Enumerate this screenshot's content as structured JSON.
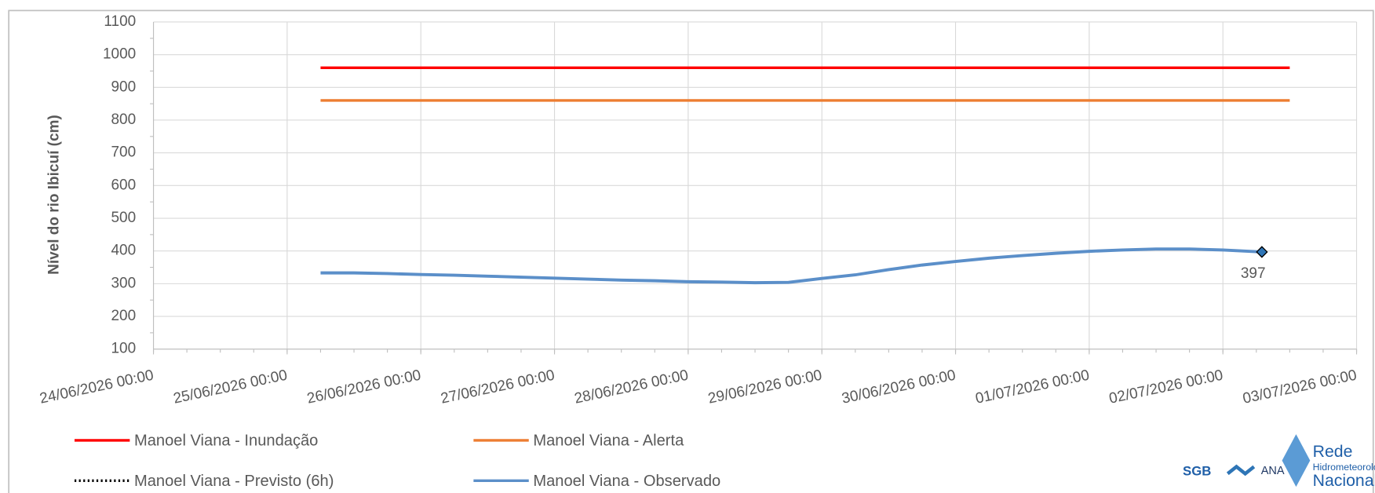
{
  "chart_data": {
    "type": "line",
    "y_label": "Nível do rio Ibicuí (cm)",
    "xlim": [
      "24/06/2026 00:00",
      "03/07/2026 00:00"
    ],
    "xticks": [
      "24/06/2026 00:00",
      "25/06/2026 00:00",
      "26/06/2026 00:00",
      "27/06/2026 00:00",
      "28/06/2026 00:00",
      "29/06/2026 00:00",
      "30/06/2026 00:00",
      "01/07/2026 00:00",
      "02/07/2026 00:00",
      "03/07/2026 00:00"
    ],
    "ylim": [
      100,
      1100
    ],
    "yticks": [
      100,
      200,
      300,
      400,
      500,
      600,
      700,
      800,
      900,
      1000,
      1100
    ],
    "grid": true,
    "series": [
      {
        "name": "Manoel Viana - Inundação",
        "color": "#ff0000",
        "style": "solid",
        "x": [
          "25/06/2026 06:00",
          "02/07/2026 12:00"
        ],
        "values": [
          960,
          960
        ]
      },
      {
        "name": "Manoel Viana - Alerta",
        "color": "#ed7d31",
        "style": "solid",
        "x": [
          "25/06/2026 06:00",
          "02/07/2026 12:00"
        ],
        "values": [
          860,
          860
        ]
      },
      {
        "name": "Manoel Viana - Previsto (6h)",
        "color": "#000000",
        "style": "dotted",
        "x": [],
        "values": []
      },
      {
        "name": "Manoel Viana - Observado",
        "color": "#5b8fc9",
        "style": "solid",
        "x": [
          "25/06/2026 06:00",
          "25/06/2026 12:00",
          "25/06/2026 18:00",
          "26/06/2026 00:00",
          "26/06/2026 06:00",
          "26/06/2026 12:00",
          "26/06/2026 18:00",
          "27/06/2026 00:00",
          "27/06/2026 06:00",
          "27/06/2026 12:00",
          "27/06/2026 18:00",
          "28/06/2026 00:00",
          "28/06/2026 06:00",
          "28/06/2026 12:00",
          "28/06/2026 18:00",
          "29/06/2026 00:00",
          "29/06/2026 06:00",
          "29/06/2026 12:00",
          "29/06/2026 18:00",
          "30/06/2026 00:00",
          "30/06/2026 06:00",
          "30/06/2026 12:00",
          "30/06/2026 18:00",
          "01/07/2026 00:00",
          "01/07/2026 06:00",
          "01/07/2026 12:00",
          "01/07/2026 18:00",
          "02/07/2026 00:00",
          "02/07/2026 07:00"
        ],
        "values": [
          333,
          333,
          331,
          328,
          326,
          323,
          320,
          317,
          314,
          311,
          309,
          306,
          305,
          303,
          304,
          316,
          327,
          343,
          357,
          368,
          378,
          386,
          393,
          399,
          403,
          406,
          406,
          403,
          397
        ],
        "last_label": "397"
      }
    ],
    "logos": [
      "SGB",
      "ANA",
      "Rede",
      "Hidrometeorológica",
      "Nacional"
    ]
  }
}
